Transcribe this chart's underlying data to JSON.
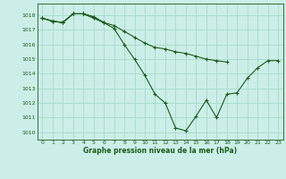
{
  "title": "Graphe pression niveau de la mer (hPa)",
  "bg_color": "#cceee8",
  "grid_color": "#aaddcc",
  "line_color": "#1a5c1a",
  "xlim": [
    -0.5,
    23.5
  ],
  "ylim": [
    1009.5,
    1018.8
  ],
  "yticks": [
    1010,
    1011,
    1012,
    1013,
    1014,
    1015,
    1016,
    1017,
    1018
  ],
  "xticks": [
    0,
    1,
    2,
    3,
    4,
    5,
    6,
    7,
    8,
    9,
    10,
    11,
    12,
    13,
    14,
    15,
    16,
    17,
    18,
    19,
    20,
    21,
    22,
    23
  ],
  "series": [
    [
      1017.8,
      1017.6,
      1017.5,
      1018.1,
      1018.1,
      1017.8,
      1017.5,
      1017.1,
      1016.0,
      1015.0,
      1013.9,
      1012.6,
      1012.0,
      1010.3,
      1010.1,
      1011.1,
      1012.2,
      1011.0,
      1012.6,
      1012.7,
      1013.7,
      1014.4,
      1014.9,
      1014.9
    ],
    [
      1017.8,
      1017.6,
      1017.5,
      1018.1,
      1018.1,
      1017.9,
      1017.5,
      1017.3,
      1016.9,
      1016.5,
      1016.1,
      1015.8,
      1015.7,
      1015.5,
      1015.4,
      1015.2,
      1015.0,
      1014.9,
      1014.8,
      null,
      null,
      null,
      null,
      null
    ],
    [
      1017.8,
      1017.6,
      1017.5,
      1018.1,
      1018.1,
      1017.9,
      1017.5,
      null,
      null,
      null,
      null,
      null,
      null,
      null,
      null,
      null,
      null,
      null,
      null,
      null,
      null,
      null,
      null,
      null
    ]
  ]
}
